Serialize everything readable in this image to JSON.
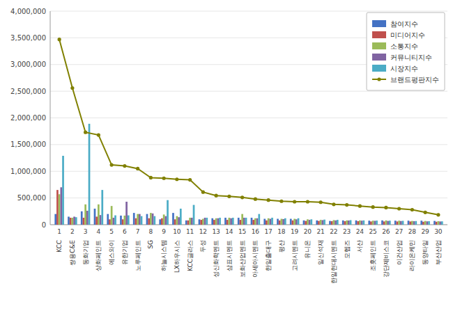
{
  "chart_data": {
    "type": "bar",
    "categories": [
      "KCC",
      "쌍용C&E",
      "동화기업",
      "상화페인트",
      "에스와이",
      "유한기업",
      "노루페인트",
      "SG",
      "하늘시스템",
      "LX하우시스",
      "KCC글라스",
      "두성",
      "성신화학멘트",
      "삼표시멘트",
      "보화산업멘트",
      "아세아시멘트",
      "한일출대구",
      "평산",
      "고려시멘트",
      "유니온",
      "일신석재",
      "한일현대시멘트",
      "모헵즈",
      "서산",
      "조홋페인트",
      "강단제비스코",
      "이건산업",
      "라이온케민",
      "동양타일",
      "부산산업"
    ],
    "series": [
      {
        "name": "참여지수",
        "type": "bar",
        "color": "#4472c4",
        "values": [
          200000,
          150000,
          250000,
          300000,
          200000,
          170000,
          220000,
          200000,
          100000,
          220000,
          80000,
          100000,
          120000,
          130000,
          130000,
          130000,
          110000,
          110000,
          110000,
          80000,
          80000,
          70000,
          80000,
          80000,
          75000,
          80000,
          75000,
          75000,
          75000,
          70000
        ]
      },
      {
        "name": "미디어지수",
        "type": "bar",
        "color": "#c0504d",
        "values": [
          650000,
          130000,
          130000,
          150000,
          100000,
          100000,
          120000,
          120000,
          120000,
          100000,
          80000,
          90000,
          90000,
          90000,
          90000,
          90000,
          80000,
          80000,
          80000,
          70000,
          70000,
          65000,
          65000,
          65000,
          60000,
          60000,
          60000,
          60000,
          55000,
          55000
        ]
      },
      {
        "name": "소통지수",
        "type": "bar",
        "color": "#9bbb59",
        "values": [
          570000,
          130000,
          380000,
          380000,
          350000,
          170000,
          200000,
          220000,
          190000,
          160000,
          130000,
          110000,
          120000,
          130000,
          200000,
          120000,
          120000,
          110000,
          110000,
          100000,
          90000,
          85000,
          80000,
          80000,
          75000,
          80000,
          75000,
          70000,
          70000,
          65000
        ]
      },
      {
        "name": "커뮤니티지수",
        "type": "bar",
        "color": "#8064a2",
        "values": [
          700000,
          150000,
          260000,
          180000,
          130000,
          430000,
          200000,
          210000,
          160000,
          140000,
          130000,
          130000,
          120000,
          120000,
          130000,
          120000,
          110000,
          105000,
          100000,
          90000,
          85000,
          80000,
          78000,
          75000,
          72000,
          70000,
          68000,
          65000,
          62000,
          60000
        ]
      },
      {
        "name": "시장지수",
        "type": "bar",
        "color": "#4bacc6",
        "values": [
          1290000,
          140000,
          1890000,
          650000,
          175000,
          175000,
          160000,
          160000,
          460000,
          300000,
          370000,
          130000,
          130000,
          130000,
          130000,
          200000,
          130000,
          120000,
          120000,
          100000,
          95000,
          90000,
          85000,
          80000,
          77000,
          75000,
          72000,
          68000,
          65000,
          62000
        ]
      },
      {
        "name": "브랜드평판지수",
        "type": "line",
        "color": "#808000",
        "marker": "circle",
        "values": [
          3470000,
          2560000,
          1730000,
          1680000,
          1120000,
          1100000,
          1050000,
          880000,
          870000,
          850000,
          840000,
          610000,
          545000,
          530000,
          510000,
          480000,
          460000,
          440000,
          430000,
          430000,
          420000,
          380000,
          370000,
          350000,
          330000,
          320000,
          300000,
          280000,
          230000,
          185000
        ]
      }
    ],
    "xlim": [
      0.3,
      30.7
    ],
    "xticks": [
      1,
      2,
      3,
      4,
      5,
      6,
      7,
      8,
      9,
      10,
      11,
      12,
      13,
      14,
      15,
      16,
      17,
      18,
      19,
      20,
      21,
      22,
      23,
      24,
      25,
      26,
      27,
      28,
      29,
      30
    ],
    "ylim": [
      0,
      4000000
    ],
    "yticks": [
      0,
      {
        "value": 500000,
        "label": "500,000"
      },
      {
        "value": 1000000,
        "label": "1,000,000"
      },
      {
        "value": 1500000,
        "label": "1,500,000"
      },
      {
        "value": 2000000,
        "label": "2,000,000"
      },
      {
        "value": 2500000,
        "label": "2,500,000"
      },
      {
        "value": 3000000,
        "label": "3,000,000"
      },
      {
        "value": 3500000,
        "label": "3,500,000"
      },
      {
        "value": 4000000,
        "label": "4,000,000"
      }
    ],
    "grid": true,
    "legend": "upper right"
  }
}
